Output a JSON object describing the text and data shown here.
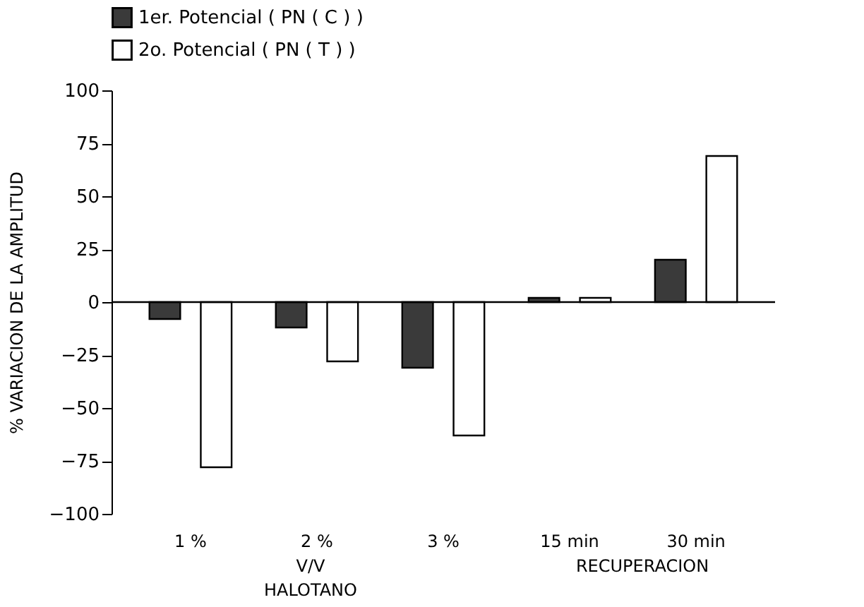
{
  "chart_data": {
    "type": "bar",
    "ylabel": "% VARIACION DE LA AMPLITUD",
    "categories": [
      "1 %",
      "2 %",
      "3 %",
      "15 min",
      "30 min"
    ],
    "series": [
      {
        "name": "1er. Potencial  ( PN ( C ) )",
        "color": "#3a3a3a",
        "values": [
          -8,
          -12,
          -31,
          2,
          20
        ]
      },
      {
        "name": "2o.  Potencial  ( PN ( T ) )",
        "color": "#ffffff",
        "values": [
          -78,
          -28,
          -63,
          2,
          69
        ]
      }
    ],
    "ylim": [
      -100,
      100
    ],
    "yticks": [
      -100,
      -75,
      -50,
      -25,
      0,
      25,
      50,
      75,
      100
    ],
    "annotations": [
      "V/V",
      "HALOTANO",
      "RECUPERACION"
    ],
    "ref_lines": [
      {
        "axis": "y",
        "value": 0,
        "color": "#000000"
      }
    ],
    "legend": "top",
    "grid": false
  }
}
